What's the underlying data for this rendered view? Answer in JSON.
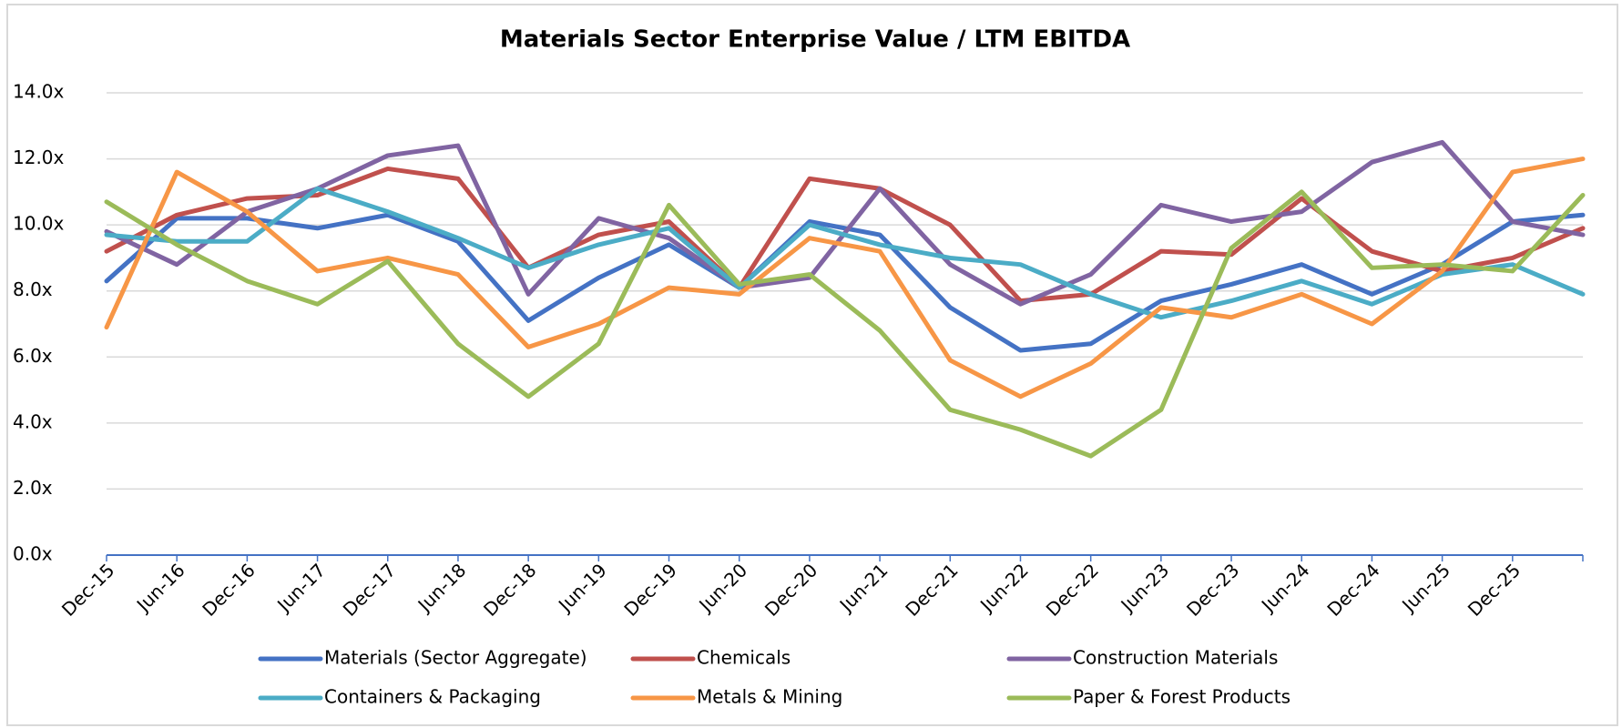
{
  "chart_data": {
    "type": "line",
    "title": "Materials Sector Enterprise Value / LTM EBITDA",
    "categories": [
      "Dec-15",
      "Jun-16",
      "Dec-16",
      "Jun-17",
      "Dec-17",
      "Jun-18",
      "Dec-18",
      "Jun-19",
      "Dec-19",
      "Jun-20",
      "Dec-20",
      "Jun-21",
      "Dec-21",
      "Jun-22",
      "Dec-22",
      "Jun-23",
      "Dec-23",
      "Jun-24",
      "Dec-24",
      "Jun-25",
      "Dec-25",
      null
    ],
    "ylim": [
      0,
      14
    ],
    "yticks": [
      {
        "value": 0,
        "label": "0.0x"
      },
      {
        "value": 2,
        "label": "2.0x"
      },
      {
        "value": 4,
        "label": "4.0x"
      },
      {
        "value": 6,
        "label": "6.0x"
      },
      {
        "value": 8,
        "label": "8.0x"
      },
      {
        "value": 10,
        "label": "10.0x"
      },
      {
        "value": 12,
        "label": "12.0x"
      },
      {
        "value": 14,
        "label": "14.0x"
      }
    ],
    "grid": true,
    "legend": "bottom",
    "series": [
      {
        "name": "Materials (Sector Aggregate)",
        "color": "#4472c4",
        "values": [
          8.3,
          10.2,
          10.2,
          9.9,
          10.3,
          9.5,
          7.1,
          8.4,
          9.4,
          8.1,
          10.1,
          9.7,
          7.5,
          6.2,
          6.4,
          7.7,
          8.2,
          8.8,
          7.9,
          8.8,
          10.1,
          10.3
        ]
      },
      {
        "name": "Chemicals",
        "color": "#c0504d",
        "values": [
          9.2,
          10.3,
          10.8,
          10.9,
          11.7,
          11.4,
          8.7,
          9.7,
          10.1,
          8.1,
          11.4,
          11.1,
          10.0,
          7.7,
          7.9,
          9.2,
          9.1,
          10.8,
          9.2,
          8.6,
          9.0,
          9.9
        ]
      },
      {
        "name": "Construction Materials",
        "color": "#8064a2",
        "values": [
          9.8,
          8.8,
          10.4,
          11.1,
          12.1,
          12.4,
          7.9,
          10.2,
          9.6,
          8.1,
          8.4,
          11.1,
          8.8,
          7.6,
          8.5,
          10.6,
          10.1,
          10.4,
          11.9,
          12.5,
          10.1,
          9.7
        ]
      },
      {
        "name": "Containers & Packaging",
        "color": "#4bacc6",
        "values": [
          9.7,
          9.5,
          9.5,
          11.1,
          10.4,
          9.6,
          8.7,
          9.4,
          9.9,
          8.1,
          10.0,
          9.4,
          9.0,
          8.8,
          7.9,
          7.2,
          7.7,
          8.3,
          7.6,
          8.5,
          8.8,
          7.9
        ]
      },
      {
        "name": "Metals & Mining",
        "color": "#f79646",
        "values": [
          6.9,
          11.6,
          10.4,
          8.6,
          9.0,
          8.5,
          6.3,
          7.0,
          8.1,
          7.9,
          9.6,
          9.2,
          5.9,
          4.8,
          5.8,
          7.5,
          7.2,
          7.9,
          7.0,
          8.6,
          11.6,
          12.0
        ]
      },
      {
        "name": "Paper & Forest Products",
        "color": "#9bbb59",
        "values": [
          10.7,
          9.4,
          8.3,
          7.6,
          8.9,
          6.4,
          4.8,
          6.4,
          10.6,
          8.2,
          8.5,
          6.8,
          4.4,
          3.8,
          3.0,
          4.4,
          9.3,
          11.0,
          8.7,
          8.8,
          8.6,
          10.9
        ]
      }
    ]
  }
}
